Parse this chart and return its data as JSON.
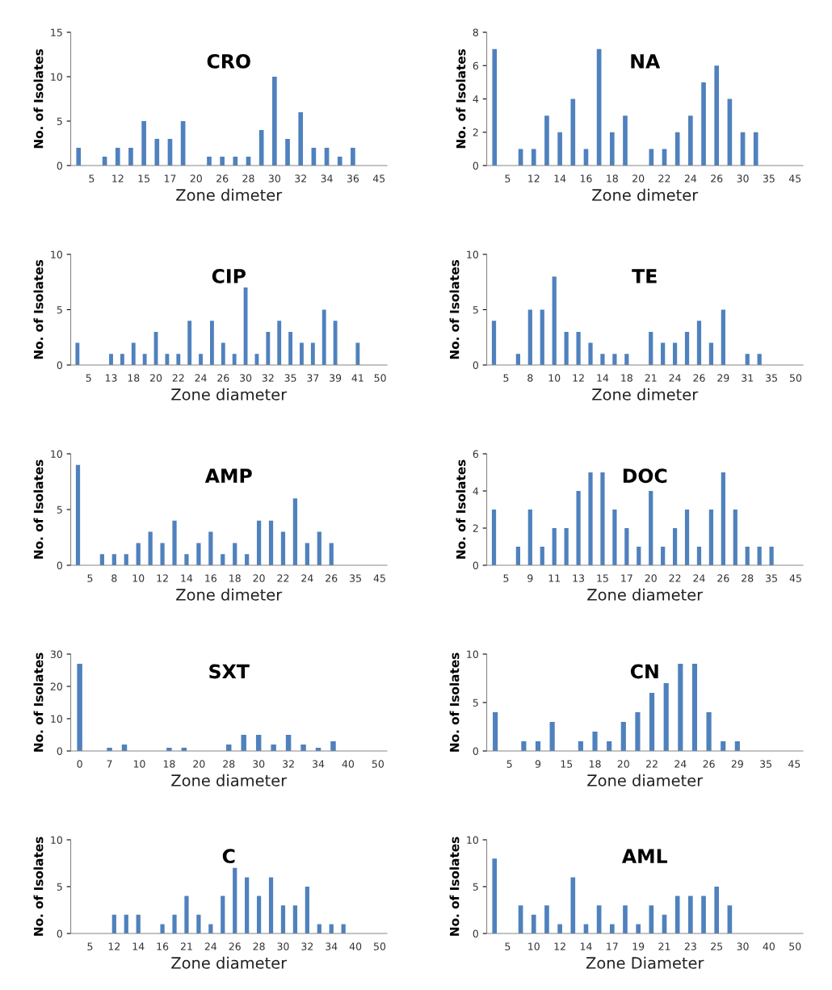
{
  "chart_data": [
    {
      "type": "bar",
      "title": "CRO",
      "xlabel": "Zone dimeter",
      "ylabel": "No. of Isolates",
      "color": "#4f81bd",
      "ylim": [
        0,
        15
      ],
      "yticks": [
        0,
        5,
        10,
        15
      ],
      "grid": false,
      "categories": [
        null,
        "5",
        null,
        "12",
        null,
        "15",
        null,
        "17",
        null,
        "20",
        null,
        "26",
        null,
        "28",
        null,
        "30",
        null,
        "32",
        null,
        "34",
        null,
        "36",
        null,
        "45"
      ],
      "values": [
        2,
        0,
        1,
        2,
        2,
        5,
        3,
        3,
        5,
        0,
        1,
        1,
        1,
        1,
        4,
        10,
        3,
        6,
        2,
        2,
        1,
        2,
        0,
        0
      ]
    },
    {
      "type": "bar",
      "title": "NA",
      "xlabel": "Zone dimeter",
      "ylabel": "No. of Isolates",
      "color": "#4f81bd",
      "ylim": [
        0,
        8
      ],
      "yticks": [
        0,
        2,
        4,
        6,
        8
      ],
      "grid": false,
      "categories": [
        null,
        "5",
        null,
        "12",
        null,
        "14",
        null,
        "16",
        null,
        "18",
        null,
        "20",
        null,
        "22",
        null,
        "24",
        null,
        "26",
        null,
        "30",
        null,
        "35",
        null,
        "45"
      ],
      "values": [
        7,
        0,
        1,
        1,
        3,
        2,
        4,
        1,
        7,
        2,
        3,
        0,
        1,
        1,
        2,
        3,
        5,
        6,
        4,
        2,
        2,
        0,
        0,
        0
      ]
    },
    {
      "type": "bar",
      "title": "CIP",
      "xlabel": "Zone diameter",
      "ylabel": "No. of Isolates",
      "color": "#4f81bd",
      "ylim": [
        0,
        10
      ],
      "yticks": [
        0,
        5,
        10
      ],
      "grid": false,
      "categories": [
        null,
        "5",
        null,
        "13",
        null,
        "18",
        null,
        "20",
        null,
        "22",
        null,
        "24",
        null,
        "26",
        null,
        "30",
        null,
        "32",
        null,
        "35",
        null,
        "37",
        null,
        "39",
        null,
        "41",
        null,
        "50"
      ],
      "values": [
        2,
        0,
        0,
        1,
        1,
        2,
        1,
        3,
        1,
        1,
        4,
        1,
        4,
        2,
        1,
        7,
        1,
        3,
        4,
        3,
        2,
        2,
        5,
        4,
        0,
        2,
        0,
        0
      ]
    },
    {
      "type": "bar",
      "title": "TE",
      "xlabel": "Zone dimeter",
      "ylabel": "No. of Isolates",
      "color": "#4f81bd",
      "ylim": [
        0,
        10
      ],
      "yticks": [
        0,
        5,
        10
      ],
      "grid": false,
      "categories": [
        null,
        "5",
        null,
        "8",
        null,
        "10",
        null,
        "12",
        null,
        "14",
        null,
        "18",
        null,
        "21",
        null,
        "24",
        null,
        "26",
        null,
        "29",
        null,
        "31",
        null,
        "35",
        null,
        "50"
      ],
      "values": [
        4,
        0,
        1,
        5,
        5,
        8,
        3,
        3,
        2,
        1,
        1,
        1,
        0,
        3,
        2,
        2,
        3,
        4,
        2,
        5,
        0,
        1,
        1,
        0,
        0,
        0
      ]
    },
    {
      "type": "bar",
      "title": "AMP",
      "xlabel": "Zone dimeter",
      "ylabel": "No. of Isolates",
      "color": "#4f81bd",
      "ylim": [
        0,
        10
      ],
      "yticks": [
        0,
        5,
        10
      ],
      "grid": false,
      "categories": [
        null,
        "5",
        null,
        "8",
        null,
        "10",
        null,
        "12",
        null,
        "14",
        null,
        "16",
        null,
        "18",
        null,
        "20",
        null,
        "22",
        null,
        "24",
        null,
        "26",
        null,
        "35",
        null,
        "45"
      ],
      "values": [
        9,
        0,
        1,
        1,
        1,
        2,
        3,
        2,
        4,
        1,
        2,
        3,
        1,
        2,
        1,
        4,
        4,
        3,
        6,
        2,
        3,
        2,
        0,
        0,
        0,
        0
      ]
    },
    {
      "type": "bar",
      "title": "DOC",
      "xlabel": "Zone diameter",
      "ylabel": "No. of Isolates",
      "color": "#4f81bd",
      "ylim": [
        0,
        6
      ],
      "yticks": [
        0,
        2,
        4,
        6
      ],
      "grid": false,
      "categories": [
        null,
        "5",
        null,
        "9",
        null,
        "11",
        null,
        "13",
        null,
        "15",
        null,
        "17",
        null,
        "20",
        null,
        "22",
        null,
        "24",
        null,
        "26",
        null,
        "28",
        null,
        "35",
        null,
        "45"
      ],
      "values": [
        3,
        0,
        1,
        3,
        1,
        2,
        2,
        4,
        5,
        5,
        3,
        2,
        1,
        4,
        1,
        2,
        3,
        1,
        3,
        5,
        3,
        1,
        1,
        1,
        0,
        0
      ]
    },
    {
      "type": "bar",
      "title": "SXT",
      "xlabel": "Zone diameter",
      "ylabel": "No. of Isolates",
      "color": "#4f81bd",
      "ylim": [
        0,
        30
      ],
      "yticks": [
        0,
        10,
        20,
        30
      ],
      "grid": false,
      "categories": [
        "0",
        null,
        "7",
        null,
        "10",
        null,
        "18",
        null,
        "20",
        null,
        "28",
        null,
        "30",
        null,
        "32",
        null,
        "34",
        null,
        "40",
        null,
        "50"
      ],
      "values": [
        27,
        0,
        1,
        2,
        0,
        0,
        1,
        1,
        0,
        0,
        2,
        5,
        5,
        2,
        5,
        2,
        1,
        3,
        0,
        0,
        0
      ]
    },
    {
      "type": "bar",
      "title": "CN",
      "xlabel": "Zone diameter",
      "ylabel": "No. of Isolates",
      "color": "#4f81bd",
      "ylim": [
        0,
        10
      ],
      "yticks": [
        0,
        5,
        10
      ],
      "grid": false,
      "categories": [
        null,
        "5",
        null,
        "9",
        null,
        "15",
        null,
        "18",
        null,
        "20",
        null,
        "22",
        null,
        "24",
        null,
        "26",
        null,
        "29",
        null,
        "35",
        null,
        "45"
      ],
      "values": [
        4,
        0,
        1,
        1,
        3,
        0,
        1,
        2,
        1,
        3,
        4,
        6,
        7,
        9,
        9,
        4,
        1,
        1,
        0,
        0,
        0,
        0
      ]
    },
    {
      "type": "bar",
      "title": "C",
      "xlabel": "Zone diameter",
      "ylabel": "No. of Isolates",
      "color": "#4f81bd",
      "ylim": [
        0,
        10
      ],
      "yticks": [
        0,
        5,
        10
      ],
      "grid": false,
      "categories": [
        null,
        "5",
        null,
        "12",
        null,
        "14",
        null,
        "16",
        null,
        "21",
        null,
        "24",
        null,
        "26",
        null,
        "28",
        null,
        "30",
        null,
        "32",
        null,
        "34",
        null,
        "40",
        null,
        "50"
      ],
      "values": [
        0,
        0,
        0,
        2,
        2,
        2,
        0,
        1,
        2,
        4,
        2,
        1,
        4,
        7,
        6,
        4,
        6,
        3,
        3,
        5,
        1,
        1,
        1,
        0,
        0,
        0
      ]
    },
    {
      "type": "bar",
      "title": "AML",
      "xlabel": "Zone Diameter",
      "ylabel": "No. of Isolates",
      "color": "#4f81bd",
      "ylim": [
        0,
        10
      ],
      "yticks": [
        0,
        5,
        10
      ],
      "grid": false,
      "categories": [
        null,
        "5",
        null,
        "10",
        null,
        "12",
        null,
        "14",
        null,
        "17",
        null,
        "19",
        null,
        "21",
        null,
        "23",
        null,
        "25",
        null,
        "30",
        null,
        "40",
        null,
        "50"
      ],
      "values": [
        8,
        0,
        3,
        2,
        3,
        1,
        6,
        1,
        3,
        1,
        3,
        1,
        3,
        2,
        4,
        4,
        4,
        5,
        3,
        0,
        0,
        0,
        0,
        0
      ]
    }
  ]
}
